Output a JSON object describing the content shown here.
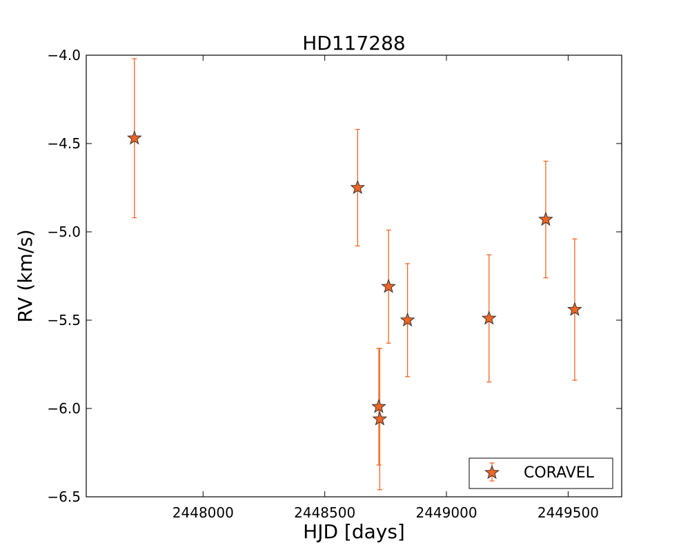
{
  "chart_data": {
    "type": "scatter",
    "title": "HD117288",
    "xlabel": "HJD [days]",
    "ylabel": "RV (km/s)",
    "xlim": [
      2447520,
      2449720
    ],
    "ylim": [
      -6.5,
      -4.0
    ],
    "x_ticks": [
      2448000,
      2448500,
      2449000,
      2449500
    ],
    "y_ticks": [
      -4.0,
      -4.5,
      -5.0,
      -5.5,
      -6.0,
      -6.5
    ],
    "x_tick_labels": [
      "2448000",
      "2448500",
      "2449000",
      "2449500"
    ],
    "y_tick_labels": [
      "−4.0",
      "−4.5",
      "−5.0",
      "−5.5",
      "−6.0",
      "−6.5"
    ],
    "grid": false,
    "legend": {
      "placement": "lower-right"
    },
    "series": [
      {
        "name": "CORAVEL",
        "marker": "star",
        "color": "#f26522",
        "edge_color": "#333333",
        "points": [
          {
            "x": 2447718,
            "y": -4.47,
            "err": 0.45
          },
          {
            "x": 2448635,
            "y": -4.75,
            "err": 0.33
          },
          {
            "x": 2448722,
            "y": -5.99,
            "err": 0.33
          },
          {
            "x": 2448726,
            "y": -6.06,
            "err": 0.4
          },
          {
            "x": 2448762,
            "y": -5.31,
            "err": 0.32
          },
          {
            "x": 2448840,
            "y": -5.5,
            "err": 0.32
          },
          {
            "x": 2449175,
            "y": -5.49,
            "err": 0.36
          },
          {
            "x": 2449408,
            "y": -4.93,
            "err": 0.33
          },
          {
            "x": 2449527,
            "y": -5.44,
            "err": 0.4
          }
        ]
      }
    ]
  }
}
